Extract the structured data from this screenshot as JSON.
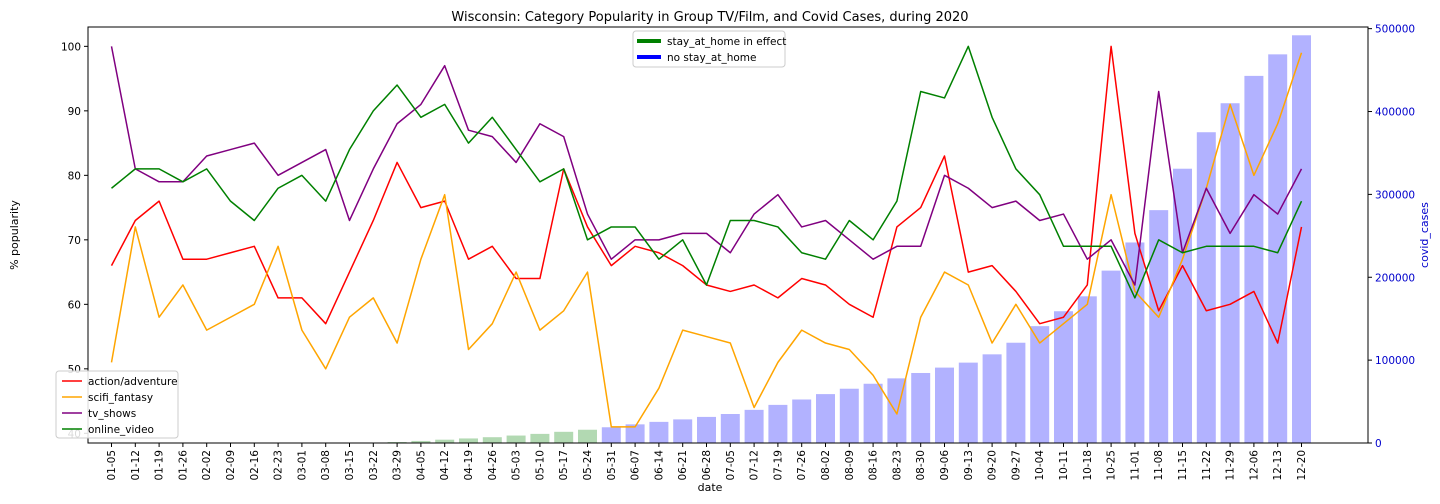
{
  "chart_data": {
    "type": "line",
    "title": "Wisconsin: Category Popularity in Group TV/Film, and Covid Cases, during 2020",
    "xlabel": "date",
    "ylabel": "% popularity",
    "y2label": "covid_cases",
    "ylim": [
      38.5,
      103
    ],
    "y2lim": [
      0,
      502000
    ],
    "y_ticks": [
      40,
      50,
      60,
      70,
      80,
      90,
      100
    ],
    "y2_ticks": [
      0,
      100000,
      200000,
      300000,
      400000,
      500000
    ],
    "grid": false,
    "categories": [
      "01-05",
      "01-12",
      "01-19",
      "01-26",
      "02-02",
      "02-09",
      "02-16",
      "02-23",
      "03-01",
      "03-08",
      "03-15",
      "03-22",
      "03-29",
      "04-05",
      "04-12",
      "04-19",
      "04-26",
      "05-03",
      "05-10",
      "05-17",
      "05-24",
      "05-31",
      "06-07",
      "06-14",
      "06-21",
      "06-28",
      "07-05",
      "07-12",
      "07-19",
      "07-26",
      "08-02",
      "08-09",
      "08-16",
      "08-23",
      "08-30",
      "09-06",
      "09-13",
      "09-20",
      "09-27",
      "10-04",
      "10-11",
      "10-18",
      "10-25",
      "11-01",
      "11-08",
      "11-15",
      "11-22",
      "11-29",
      "12-06",
      "12-13",
      "12-20"
    ],
    "series": [
      {
        "name": "action/adventure",
        "color": "#ff0000",
        "values": [
          66,
          73,
          76,
          67,
          67,
          68,
          69,
          61,
          61,
          57,
          65,
          73,
          82,
          75,
          76,
          67,
          69,
          64,
          64,
          81,
          72,
          66,
          69,
          68,
          66,
          63,
          62,
          63,
          61,
          64,
          63,
          60,
          58,
          72,
          75,
          83,
          65,
          66,
          62,
          57,
          58,
          63,
          100,
          71,
          59,
          66,
          59,
          60,
          62,
          54,
          72
        ]
      },
      {
        "name": "scifi_fantasy",
        "color": "#ffa500",
        "values": [
          51,
          72,
          58,
          63,
          56,
          58,
          60,
          69,
          56,
          50,
          58,
          61,
          54,
          67,
          77,
          53,
          57,
          65,
          56,
          59,
          65,
          41,
          41,
          47,
          56,
          55,
          54,
          44,
          51,
          56,
          54,
          53,
          49,
          43,
          58,
          65,
          63,
          54,
          60,
          54,
          57,
          60,
          77,
          62,
          58,
          67,
          78,
          91,
          80,
          88,
          99
        ]
      },
      {
        "name": "tv_shows",
        "color": "#800080",
        "values": [
          100,
          81,
          79,
          79,
          83,
          84,
          85,
          80,
          82,
          84,
          73,
          81,
          88,
          91,
          97,
          87,
          86,
          82,
          88,
          86,
          74,
          67,
          70,
          70,
          71,
          71,
          68,
          74,
          77,
          72,
          73,
          70,
          67,
          69,
          69,
          80,
          78,
          75,
          76,
          73,
          74,
          67,
          70,
          63,
          93,
          68,
          78,
          71,
          77,
          74,
          81
        ]
      },
      {
        "name": "online_video",
        "color": "#008000",
        "values": [
          78,
          81,
          81,
          79,
          81,
          76,
          73,
          78,
          80,
          76,
          84,
          90,
          94,
          89,
          91,
          85,
          89,
          84,
          79,
          81,
          70,
          72,
          72,
          67,
          70,
          63,
          73,
          73,
          72,
          68,
          67,
          73,
          70,
          76,
          93,
          92,
          100,
          89,
          81,
          77,
          69,
          69,
          69,
          61,
          70,
          68,
          69,
          69,
          69,
          68,
          76
        ]
      }
    ],
    "bars": {
      "name": "covid_cases",
      "values": [
        0,
        0,
        0,
        0,
        0,
        0,
        0,
        0,
        0,
        0,
        0,
        0,
        1200,
        2500,
        4000,
        5500,
        7000,
        9000,
        11000,
        13500,
        16000,
        19000,
        22500,
        25500,
        28500,
        31500,
        35000,
        40000,
        46000,
        52500,
        59000,
        65500,
        71500,
        78000,
        84500,
        91000,
        97000,
        107000,
        121000,
        141000,
        159000,
        177000,
        208000,
        242000,
        281000,
        331000,
        375000,
        410000,
        443000,
        469000,
        492000
      ],
      "stay_at_home": [
        true,
        true,
        true,
        true,
        true,
        true,
        true,
        true,
        true,
        true,
        true,
        true,
        true,
        true,
        true,
        true,
        true,
        true,
        true,
        true,
        true,
        false,
        false,
        false,
        false,
        false,
        false,
        false,
        false,
        false,
        false,
        false,
        false,
        false,
        false,
        false,
        false,
        false,
        false,
        false,
        false,
        false,
        false,
        false,
        false,
        false,
        false,
        false,
        false,
        false,
        false
      ],
      "color_stay": "#008000",
      "color_no_stay": "#0000ff"
    },
    "legend_left": {
      "placement": "lower-left",
      "entries": [
        "action/adventure",
        "scifi_fantasy",
        "tv_shows",
        "online_video"
      ]
    },
    "legend_top": {
      "placement": "upper-center",
      "entries": [
        {
          "label": "stay_at_home in effect",
          "color": "#008000"
        },
        {
          "label": "no stay_at_home",
          "color": "#0000ff"
        }
      ]
    }
  }
}
